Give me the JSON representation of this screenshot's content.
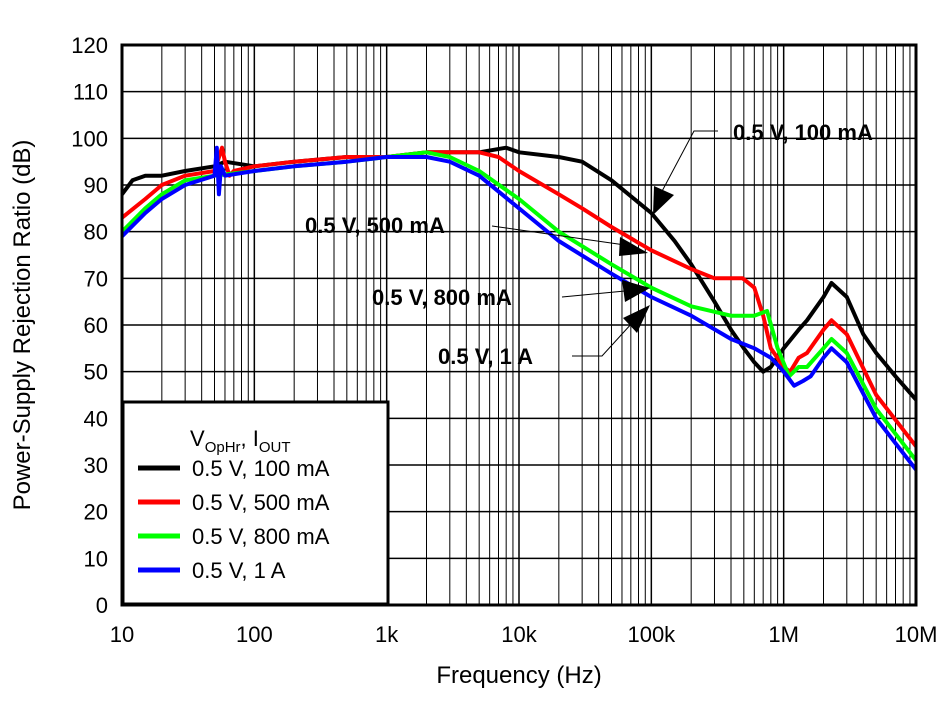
{
  "chart_data": {
    "type": "line",
    "title": "",
    "xlabel": "Frequency (Hz)",
    "ylabel": "Power-Supply Rejection Ratio (dB)",
    "xscale": "log",
    "xlim": [
      10,
      10000000
    ],
    "ylim": [
      0,
      120
    ],
    "grid": true,
    "x_ticks": [
      {
        "value": 10,
        "label": "10"
      },
      {
        "value": 100,
        "label": "100"
      },
      {
        "value": 1000,
        "label": "1k"
      },
      {
        "value": 10000,
        "label": "10k"
      },
      {
        "value": 100000,
        "label": "100k"
      },
      {
        "value": 1000000,
        "label": "1M"
      },
      {
        "value": 10000000,
        "label": "10M"
      }
    ],
    "y_ticks": [
      0,
      10,
      20,
      30,
      40,
      50,
      60,
      70,
      80,
      90,
      100,
      110,
      120
    ],
    "legend": {
      "placement": "bottom-left",
      "title_main1": "V",
      "title_sub1": "OpHr",
      "title_sep": ", I",
      "title_sub2": "OUT"
    },
    "series": [
      {
        "name": "0.5 V, 100 mA",
        "color": "#000000",
        "x": [
          10,
          12,
          15,
          20,
          30,
          50,
          60,
          100,
          200,
          500,
          1000,
          2000,
          5000,
          8000,
          10000,
          20000,
          30000,
          50000,
          100000,
          150000,
          200000,
          300000,
          400000,
          500000,
          600000,
          700000,
          800000,
          1000000,
          1300000,
          1500000,
          2000000,
          2300000,
          3000000,
          4000000,
          5000000,
          7000000,
          10000000
        ],
        "y": [
          88,
          91,
          92,
          92,
          93,
          94,
          95,
          94,
          95,
          96,
          96,
          97,
          97,
          98,
          97,
          96,
          95,
          91,
          84,
          78,
          73,
          65,
          59,
          55,
          52,
          50,
          51,
          55,
          59,
          61,
          66,
          69,
          66,
          58,
          54,
          49,
          44
        ]
      },
      {
        "name": "0.5 V, 500 mA",
        "color": "#ff0000",
        "x": [
          10,
          15,
          20,
          30,
          50,
          57,
          60,
          65,
          70,
          100,
          200,
          500,
          1000,
          2000,
          5000,
          7000,
          10000,
          20000,
          30000,
          50000,
          100000,
          200000,
          300000,
          490000,
          600000,
          700000,
          800000,
          1000000,
          1120000,
          1300000,
          1500000,
          2000000,
          2300000,
          3000000,
          5000000,
          10000000
        ],
        "y": [
          83,
          87,
          90,
          92,
          93,
          98,
          95,
          92,
          93,
          94,
          95,
          96,
          96,
          97,
          97,
          96,
          93,
          88,
          85,
          81,
          76,
          72,
          70,
          70,
          68,
          62,
          55,
          51,
          50,
          53,
          54,
          59,
          61,
          58,
          45,
          34
        ]
      },
      {
        "name": "0.5 V, 800 mA",
        "color": "#00ff00",
        "x": [
          10,
          15,
          20,
          30,
          50,
          100,
          200,
          500,
          1000,
          2000,
          3000,
          5000,
          10000,
          20000,
          50000,
          100000,
          200000,
          400000,
          600000,
          750000,
          900000,
          1100000,
          1300000,
          1500000,
          2000000,
          2300000,
          3000000,
          5000000,
          10000000
        ],
        "y": [
          80,
          85,
          88,
          91,
          92,
          93,
          94,
          95,
          96,
          97,
          96,
          93,
          87,
          80,
          73,
          68,
          64,
          62,
          62,
          63,
          55,
          49,
          51,
          51,
          55,
          57,
          54,
          42,
          31
        ]
      },
      {
        "name": "0.5 V, 1 A",
        "color": "#0000ff",
        "x": [
          10,
          15,
          20,
          30,
          50,
          52,
          54,
          56,
          60,
          100,
          200,
          500,
          1000,
          2000,
          3000,
          5000,
          10000,
          20000,
          50000,
          100000,
          200000,
          400000,
          600000,
          800000,
          1000000,
          1200000,
          1400000,
          1600000,
          2000000,
          2300000,
          3000000,
          5000000,
          10000000
        ],
        "y": [
          79,
          84,
          87,
          90,
          92,
          98,
          88,
          94,
          92,
          93,
          94,
          95,
          96,
          96,
          95,
          92,
          85,
          78,
          71,
          66,
          62,
          57,
          55,
          53,
          50,
          47,
          48,
          49,
          53,
          55,
          52,
          40,
          29
        ]
      }
    ],
    "annotations": [
      {
        "text": "0.5 V, 100 mA",
        "series": 0
      },
      {
        "text": "0.5 V, 500 mA",
        "series": 1
      },
      {
        "text": "0.5 V, 800 mA",
        "series": 2
      },
      {
        "text": "0.5 V, 1 A",
        "series": 3
      }
    ]
  }
}
